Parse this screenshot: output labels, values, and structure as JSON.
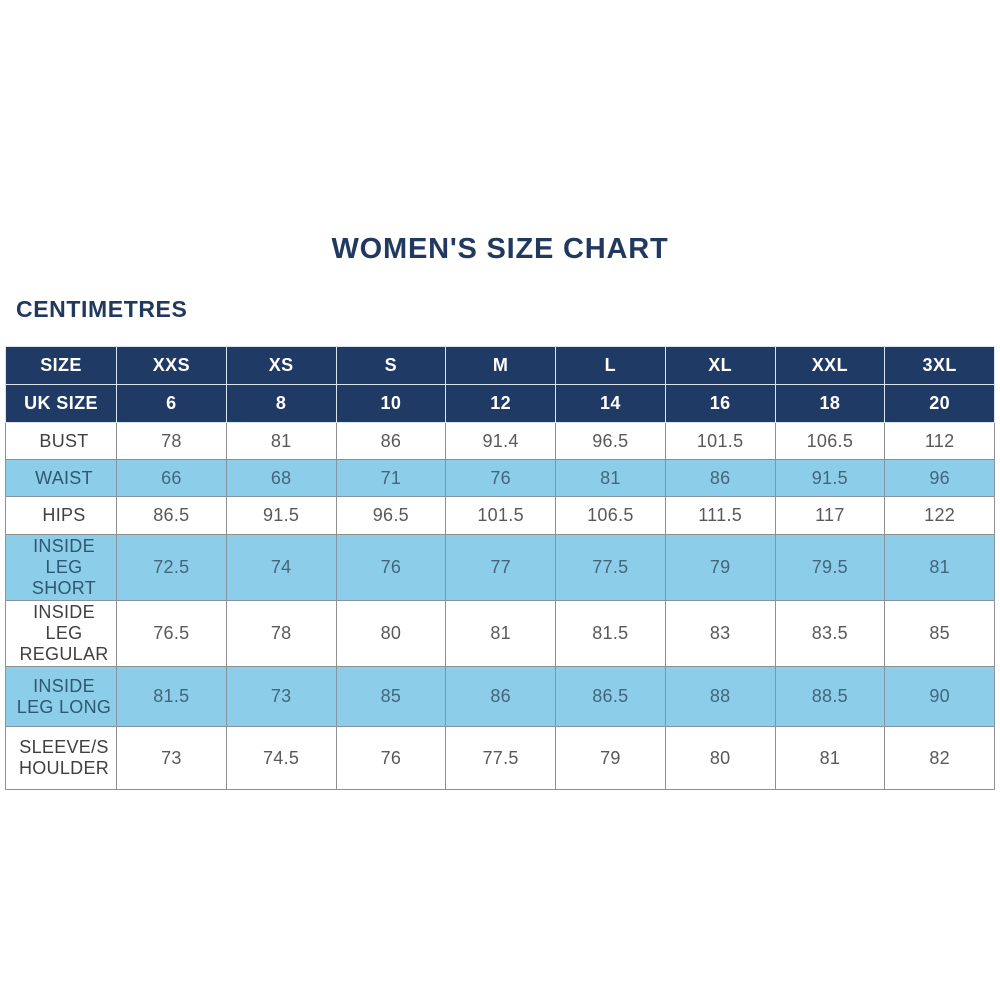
{
  "page": {
    "title": "WOMEN'S SIZE CHART",
    "unit_label": "CENTIMETRES"
  },
  "colors": {
    "navy": "#203a66",
    "light_blue": "#8cceea",
    "title_text": "#21395e",
    "white_row_text": "#58595b",
    "blue_row_text": "#44657c"
  },
  "chart_data": {
    "type": "table",
    "title": "WOMEN'S SIZE CHART",
    "unit": "CENTIMETRES",
    "columns": [
      "SIZE",
      "XXS",
      "XS",
      "S",
      "M",
      "L",
      "XL",
      "XXL",
      "3XL"
    ],
    "rows": [
      {
        "label": "UK SIZE",
        "variant": "navy",
        "values": [
          "6",
          "8",
          "10",
          "12",
          "14",
          "16",
          "18",
          "20"
        ]
      },
      {
        "label": "BUST",
        "variant": "white",
        "values": [
          "78",
          "81",
          "86",
          "91.4",
          "96.5",
          "101.5",
          "106.5",
          "112"
        ]
      },
      {
        "label": "WAIST",
        "variant": "blue",
        "values": [
          "66",
          "68",
          "71",
          "76",
          "81",
          "86",
          "91.5",
          "96"
        ]
      },
      {
        "label": "HIPS",
        "variant": "white",
        "values": [
          "86.5",
          "91.5",
          "96.5",
          "101.5",
          "106.5",
          "111.5",
          "117",
          "122"
        ]
      },
      {
        "label": "INSIDE LEG SHORT",
        "variant": "blue",
        "values": [
          "72.5",
          "74",
          "76",
          "77",
          "77.5",
          "79",
          "79.5",
          "81"
        ]
      },
      {
        "label": "INSIDE LEG REGULAR",
        "variant": "white",
        "values": [
          "76.5",
          "78",
          "80",
          "81",
          "81.5",
          "83",
          "83.5",
          "85"
        ]
      },
      {
        "label": "INSIDE LEG LONG",
        "variant": "blue",
        "values": [
          "81.5",
          "73",
          "85",
          "86",
          "86.5",
          "88",
          "88.5",
          "90"
        ]
      },
      {
        "label": "SLEEVE/SHOULDER",
        "variant": "white",
        "values": [
          "73",
          "74.5",
          "76",
          "77.5",
          "79",
          "80",
          "81",
          "82"
        ]
      }
    ]
  }
}
